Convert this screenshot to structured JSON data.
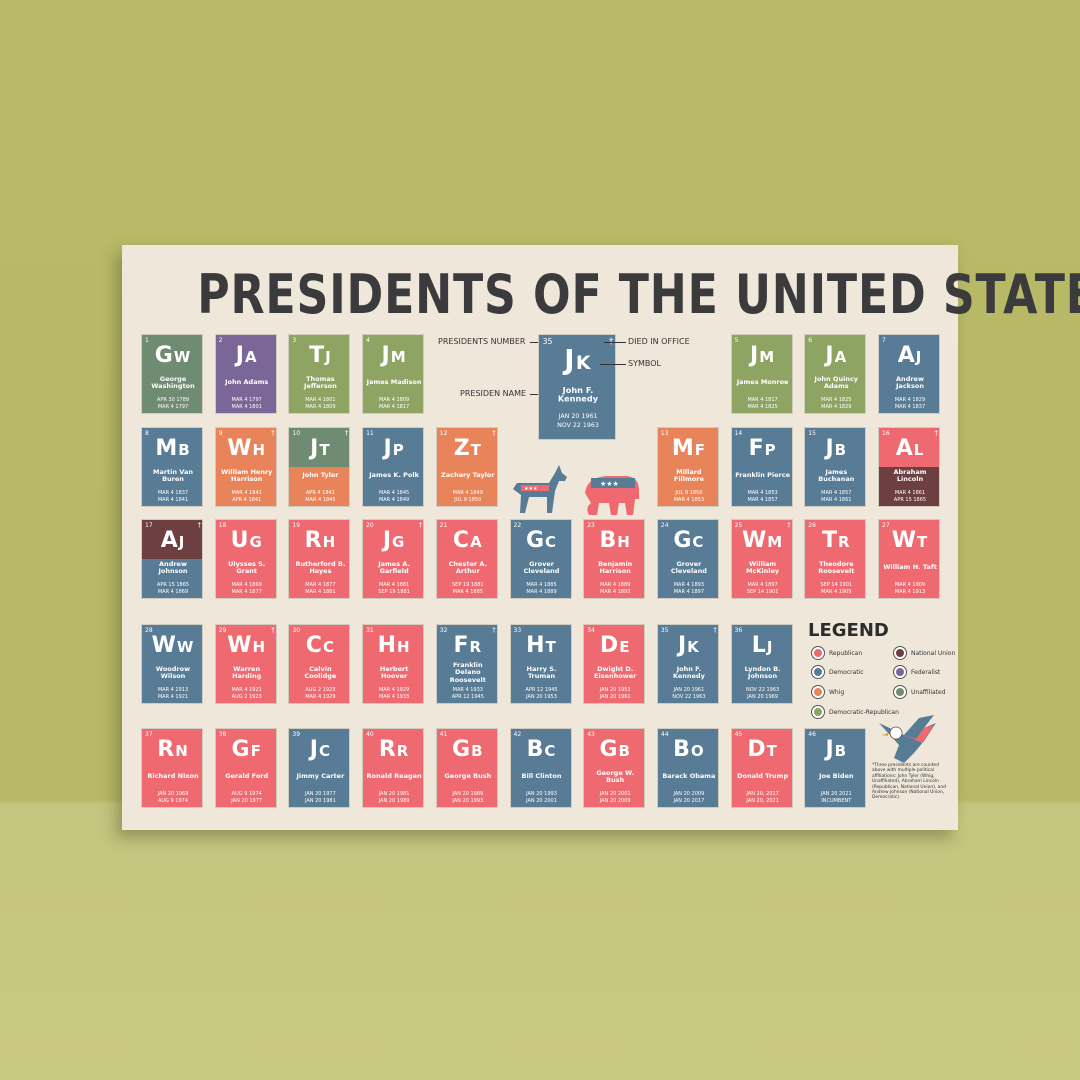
{
  "header": {
    "title": "PRESIDENTS OF THE UNITED STATES"
  },
  "key": {
    "tile": {
      "number": 35,
      "died_marker": "†",
      "symbol": "JK",
      "name": "John F. Kennedy",
      "start": "JAN 20 1961",
      "end": "NOV 22 1963",
      "parties": [
        "Democratic"
      ]
    },
    "labels": {
      "number": "PRESIDENTS NUMBER",
      "died": "DIED IN OFFICE",
      "symbol": "SYMBOL",
      "name": "PRESIDEN NAME"
    }
  },
  "tiles": [
    {
      "number": 1,
      "symbol": "GW",
      "name": "George Washington",
      "start": "APR 30 1789",
      "end": "MAR 4 1797",
      "parties": [
        "Unaffiliated"
      ]
    },
    {
      "number": 2,
      "symbol": "JA",
      "name": "John Adams",
      "start": "MAR 4 1797",
      "end": "MAR 4 1801",
      "parties": [
        "Federalist"
      ]
    },
    {
      "number": 3,
      "symbol": "TJ",
      "name": "Thomas Jefferson",
      "start": "MAR 4 1801",
      "end": "MAR 4 1809",
      "parties": [
        "Democratic-Republican"
      ]
    },
    {
      "number": 4,
      "symbol": "JM",
      "name": "James Madison",
      "start": "MAR 4 1809",
      "end": "MAR 4 1817",
      "parties": [
        "Democratic-Republican"
      ]
    },
    {
      "number": 5,
      "symbol": "JM",
      "name": "James Monroe",
      "start": "MAR 4 1817",
      "end": "MAR 4 1825",
      "parties": [
        "Democratic-Republican"
      ]
    },
    {
      "number": 6,
      "symbol": "JA",
      "name": "John Quincy Adams",
      "start": "MAR 4 1825",
      "end": "MAR 4 1829",
      "parties": [
        "Democratic-Republican"
      ]
    },
    {
      "number": 7,
      "symbol": "AJ",
      "name": "Andrew Jackson",
      "start": "MAR 4 1829",
      "end": "MAR 4 1837",
      "parties": [
        "Democratic"
      ]
    },
    {
      "number": 8,
      "symbol": "MB",
      "name": "Martin Van Buren",
      "start": "MAR 4 1837",
      "end": "MAR 4 1841",
      "parties": [
        "Democratic"
      ]
    },
    {
      "number": 9,
      "died_marker": "†",
      "symbol": "WH",
      "name": "William Henry Harrison",
      "start": "MAR 4 1841",
      "end": "APR 4 1841",
      "parties": [
        "Whig"
      ]
    },
    {
      "number": 10,
      "died_marker": "†",
      "symbol": "JT",
      "name": "John Tyler",
      "start": "APR 4 1841",
      "end": "MAR 4 1845",
      "parties": [
        "Unaffiliated",
        "Whig"
      ]
    },
    {
      "number": 11,
      "symbol": "JP",
      "name": "James K. Polk",
      "start": "MAR 4 1845",
      "end": "MAR 4 1849",
      "parties": [
        "Democratic"
      ]
    },
    {
      "number": 12,
      "died_marker": "†",
      "symbol": "ZT",
      "name": "Zachary Taylor",
      "start": "MAR 4 1849",
      "end": "JUL 9 1850",
      "parties": [
        "Whig"
      ]
    },
    {
      "number": 13,
      "symbol": "MF",
      "name": "Millard Fillmore",
      "start": "JUL 9 1850",
      "end": "MAR 4 1853",
      "parties": [
        "Whig"
      ]
    },
    {
      "number": 14,
      "symbol": "FP",
      "name": "Franklin Pierce",
      "start": "MAR 4 1853",
      "end": "MAR 4 1857",
      "parties": [
        "Democratic"
      ]
    },
    {
      "number": 15,
      "symbol": "JB",
      "name": "James Buchanan",
      "start": "MAR 4 1857",
      "end": "MAR 4 1861",
      "parties": [
        "Democratic"
      ]
    },
    {
      "number": 16,
      "died_marker": "†",
      "symbol": "AL",
      "name": "Abraham Lincoln",
      "start": "MAR 4 1861",
      "end": "APR 15 1865",
      "parties": [
        "Republican",
        "National Union"
      ]
    },
    {
      "number": 17,
      "died_marker": "†",
      "symbol": "AJ",
      "name": "Andrew Johnson",
      "start": "APR 15 1865",
      "end": "MAR 4 1869",
      "parties": [
        "National Union",
        "Democratic"
      ]
    },
    {
      "number": 18,
      "symbol": "UG",
      "name": "Ulysses S. Grant",
      "start": "MAR 4 1869",
      "end": "MAR 4 1877",
      "parties": [
        "Republican"
      ]
    },
    {
      "number": 19,
      "symbol": "RH",
      "name": "Rutherford B. Hayes",
      "start": "MAR 4 1877",
      "end": "MAR 4 1881",
      "parties": [
        "Republican"
      ]
    },
    {
      "number": 20,
      "died_marker": "†",
      "symbol": "JG",
      "name": "James A. Garfield",
      "start": "MAR 4 1881",
      "end": "SEP 19 1881",
      "parties": [
        "Republican"
      ]
    },
    {
      "number": 21,
      "symbol": "CA",
      "name": "Chester A. Arthur",
      "start": "SEP 19 1881",
      "end": "MAR 4 1885",
      "parties": [
        "Republican"
      ]
    },
    {
      "number": 22,
      "symbol": "GC",
      "name": "Grover Cleveland",
      "start": "MAR 4 1885",
      "end": "MAR 4 1889",
      "parties": [
        "Democratic"
      ]
    },
    {
      "number": 23,
      "symbol": "BH",
      "name": "Benjamin Harrison",
      "start": "MAR 4 1889",
      "end": "MAR 4 1893",
      "parties": [
        "Republican"
      ]
    },
    {
      "number": 24,
      "symbol": "GC",
      "name": "Grover Cleveland",
      "start": "MAR 4 1893",
      "end": "MAR 4 1897",
      "parties": [
        "Democratic"
      ]
    },
    {
      "number": 25,
      "died_marker": "†",
      "symbol": "WM",
      "name": "William McKinley",
      "start": "MAR 4 1897",
      "end": "SEP 14 1901",
      "parties": [
        "Republican"
      ]
    },
    {
      "number": 26,
      "symbol": "TR",
      "name": "Theodore Roosevelt",
      "start": "SEP 14 1901",
      "end": "MAR 4 1909",
      "parties": [
        "Republican"
      ]
    },
    {
      "number": 27,
      "symbol": "WT",
      "name": "William H. Taft",
      "start": "MAR 4 1909",
      "end": "MAR 4 1913",
      "parties": [
        "Republican"
      ]
    },
    {
      "number": 28,
      "symbol": "WW",
      "name": "Woodrow Wilson",
      "start": "MAR 4 1913",
      "end": "MAR 4 1921",
      "parties": [
        "Democratic"
      ]
    },
    {
      "number": 29,
      "died_marker": "†",
      "symbol": "WH",
      "name": "Warren Harding",
      "start": "MAR 4 1921",
      "end": "AUG 2 1923",
      "parties": [
        "Republican"
      ]
    },
    {
      "number": 30,
      "symbol": "CC",
      "name": "Calvin Coolidge",
      "start": "AUG 2 1923",
      "end": "MAR 4 1929",
      "parties": [
        "Republican"
      ]
    },
    {
      "number": 31,
      "symbol": "HH",
      "name": "Herbert Hoover",
      "start": "MAR 4 1929",
      "end": "MAR 4 1933",
      "parties": [
        "Republican"
      ]
    },
    {
      "number": 32,
      "died_marker": "†",
      "symbol": "FR",
      "name": "Franklin Delano Roosevelt",
      "start": "MAR 4 1933",
      "end": "APR 12 1945",
      "parties": [
        "Democratic"
      ]
    },
    {
      "number": 33,
      "symbol": "HT",
      "name": "Harry S. Truman",
      "start": "APR 12 1945",
      "end": "JAN 20 1953",
      "parties": [
        "Democratic"
      ]
    },
    {
      "number": 34,
      "symbol": "DE",
      "name": "Dwight D. Eisenhower",
      "start": "JAN 20 1953",
      "end": "JAN 20 1961",
      "parties": [
        "Republican"
      ]
    },
    {
      "number": 35,
      "died_marker": "†",
      "symbol": "JK",
      "name": "John F. Kennedy",
      "start": "JAN 20 1961",
      "end": "NOV 22 1963",
      "parties": [
        "Democratic"
      ]
    },
    {
      "number": 36,
      "symbol": "LJ",
      "name": "Lyndon B. Johnson",
      "start": "NOV 22 1963",
      "end": "JAN 20 1969",
      "parties": [
        "Democratic"
      ]
    },
    {
      "number": 37,
      "symbol": "RN",
      "name": "Richard Nixon",
      "start": "JAN 20 1969",
      "end": "AUG 9 1974",
      "parties": [
        "Republican"
      ]
    },
    {
      "number": 38,
      "symbol": "GF",
      "name": "Gerald Ford",
      "start": "AUG 9 1974",
      "end": "JAN 20 1977",
      "parties": [
        "Republican"
      ]
    },
    {
      "number": 39,
      "symbol": "JC",
      "name": "Jimmy Carter",
      "start": "JAN 20 1977",
      "end": "JAN 20 1981",
      "parties": [
        "Democratic"
      ]
    },
    {
      "number": 40,
      "symbol": "RR",
      "name": "Ronald Reagan",
      "start": "JAN 20 1981",
      "end": "JAN 20 1989",
      "parties": [
        "Republican"
      ]
    },
    {
      "number": 41,
      "symbol": "GB",
      "name": "George Bush",
      "start": "JAN 20 1989",
      "end": "JAN 20 1993",
      "parties": [
        "Republican"
      ]
    },
    {
      "number": 42,
      "symbol": "BC",
      "name": "Bill Clinton",
      "start": "JAN 20 1993",
      "end": "JAN 20 2001",
      "parties": [
        "Democratic"
      ]
    },
    {
      "number": 43,
      "symbol": "GB",
      "name": "George W. Bush",
      "start": "JAN 20 2001",
      "end": "JAN 20 2009",
      "parties": [
        "Republican"
      ]
    },
    {
      "number": 44,
      "symbol": "BO",
      "name": "Barack Obama",
      "start": "JAN 20 2009",
      "end": "JAN 20 2017",
      "parties": [
        "Democratic"
      ]
    },
    {
      "number": 45,
      "symbol": "DT",
      "name": "Donald Trump",
      "start": "JAN 20, 2017",
      "end": "JAN 20, 2021",
      "parties": [
        "Republican"
      ]
    },
    {
      "number": 46,
      "symbol": "JB",
      "name": "Joe Biden",
      "start": "JAN 20 2021",
      "end": "INCUMBENT",
      "parties": [
        "Democratic"
      ]
    }
  ],
  "legend": {
    "title": "LEGEND",
    "items": [
      {
        "name": "Republican",
        "color": "#ef6a70"
      },
      {
        "name": "Democratic",
        "color": "#587b96"
      },
      {
        "name": "Whig",
        "color": "#e9845a"
      },
      {
        "name": "Democratic-Republican",
        "color": "#8ea463"
      },
      {
        "name": "National Union",
        "color": "#6d3f40"
      },
      {
        "name": "Federalist",
        "color": "#7b6698"
      },
      {
        "name": "Unaffiliated",
        "color": "#6f8b72"
      }
    ]
  },
  "footnote": "*Three presidents are counted above with multiple political affiliations: John Tyler (Whig, Unaffiliated), Abraham Lincoln (Republican, National Union), and Andrew Johnson (National Union, Democratic)."
}
